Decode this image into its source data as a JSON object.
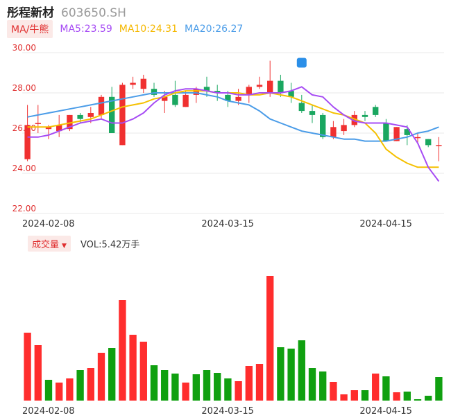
{
  "header": {
    "stock_name": "彤程新材",
    "stock_code": "603650.SH"
  },
  "legend": {
    "ma_toggle": "MA/牛熊",
    "ma5": "MA5:23.59",
    "ma10": "MA10:24.31",
    "ma20": "MA20:26.27"
  },
  "volume_header": {
    "toggle": "成交量",
    "caret": "▼",
    "vol_text": "VOL:5.42万手"
  },
  "colors": {
    "up": "#f03030",
    "down": "#1aa760",
    "vol_up": "#ff2d2d",
    "vol_down": "#10a010",
    "ma5": "#a64bf4",
    "ma10": "#f5c000",
    "ma20": "#4a9ce8",
    "grid": "#e8e8e8",
    "axis_label": "#e03030"
  },
  "chart_data": [
    {
      "type": "candlestick",
      "y_ticks": [
        "30.00",
        "28.00",
        "26.00",
        "24.00",
        "22.00"
      ],
      "ylim": [
        22,
        30
      ],
      "x_labels": [
        "2024-02-08",
        "2024-03-15",
        "2024-04-15"
      ],
      "x_label_index": [
        1,
        18,
        33
      ],
      "candles": [
        {
          "o": 24.7,
          "c": 26.4,
          "h": 27.4,
          "l": 24.6
        },
        {
          "o": 26.5,
          "c": 26.5,
          "h": 27.4,
          "l": 26.0
        },
        {
          "o": 26.2,
          "c": 26.3,
          "h": 26.4,
          "l": 25.7
        },
        {
          "o": 26.1,
          "c": 26.4,
          "h": 26.9,
          "l": 25.8
        },
        {
          "o": 26.2,
          "c": 26.9,
          "h": 26.9,
          "l": 26.1
        },
        {
          "o": 26.9,
          "c": 26.7,
          "h": 27.0,
          "l": 26.5
        },
        {
          "o": 26.8,
          "c": 27.0,
          "h": 27.3,
          "l": 26.5
        },
        {
          "o": 26.9,
          "c": 27.8,
          "h": 27.9,
          "l": 26.7
        },
        {
          "o": 27.8,
          "c": 26.0,
          "h": 28.3,
          "l": 26.0
        },
        {
          "o": 25.4,
          "c": 28.4,
          "h": 28.5,
          "l": 25.4
        },
        {
          "o": 28.4,
          "c": 28.5,
          "h": 28.8,
          "l": 28.2
        },
        {
          "o": 28.2,
          "c": 28.7,
          "h": 28.9,
          "l": 28.0
        },
        {
          "o": 28.2,
          "c": 27.9,
          "h": 28.5,
          "l": 27.8
        },
        {
          "o": 27.6,
          "c": 27.8,
          "h": 28.1,
          "l": 27.0
        },
        {
          "o": 27.9,
          "c": 27.4,
          "h": 28.6,
          "l": 27.3
        },
        {
          "o": 27.3,
          "c": 27.9,
          "h": 28.1,
          "l": 27.3
        },
        {
          "o": 27.9,
          "c": 28.2,
          "h": 28.3,
          "l": 27.5
        },
        {
          "o": 28.3,
          "c": 28.1,
          "h": 28.8,
          "l": 27.8
        },
        {
          "o": 28.1,
          "c": 28.0,
          "h": 28.4,
          "l": 27.6
        },
        {
          "o": 27.9,
          "c": 27.6,
          "h": 28.1,
          "l": 27.3
        },
        {
          "o": 27.6,
          "c": 27.8,
          "h": 28.2,
          "l": 27.4
        },
        {
          "o": 27.9,
          "c": 28.3,
          "h": 28.4,
          "l": 27.5
        },
        {
          "o": 28.3,
          "c": 28.4,
          "h": 28.8,
          "l": 28.2
        },
        {
          "o": 28.0,
          "c": 28.6,
          "h": 29.6,
          "l": 27.8
        },
        {
          "o": 28.6,
          "c": 28.0,
          "h": 28.9,
          "l": 27.8
        },
        {
          "o": 28.1,
          "c": 27.8,
          "h": 28.5,
          "l": 27.5
        },
        {
          "o": 27.5,
          "c": 27.1,
          "h": 27.9,
          "l": 27.0
        },
        {
          "o": 27.1,
          "c": 26.9,
          "h": 27.4,
          "l": 26.5
        },
        {
          "o": 26.9,
          "c": 25.8,
          "h": 27.0,
          "l": 25.7
        },
        {
          "o": 25.8,
          "c": 26.3,
          "h": 26.6,
          "l": 25.7
        },
        {
          "o": 26.1,
          "c": 26.4,
          "h": 26.7,
          "l": 25.9
        },
        {
          "o": 26.4,
          "c": 26.9,
          "h": 27.1,
          "l": 26.3
        },
        {
          "o": 26.9,
          "c": 26.8,
          "h": 27.1,
          "l": 26.6
        },
        {
          "o": 27.3,
          "c": 26.9,
          "h": 27.4,
          "l": 26.8
        },
        {
          "o": 26.5,
          "c": 25.6,
          "h": 26.7,
          "l": 25.6
        },
        {
          "o": 25.6,
          "c": 26.3,
          "h": 26.3,
          "l": 25.6
        },
        {
          "o": 26.2,
          "c": 25.9,
          "h": 26.4,
          "l": 25.4
        },
        {
          "o": 25.8,
          "c": 25.8,
          "h": 26.0,
          "l": 25.5
        },
        {
          "o": 25.7,
          "c": 25.4,
          "h": 25.7,
          "l": 25.3
        },
        {
          "o": 25.4,
          "c": 25.4,
          "h": 25.8,
          "l": 24.6
        }
      ],
      "ma5": [
        25.8,
        25.8,
        25.9,
        26.1,
        26.3,
        26.5,
        26.6,
        26.7,
        26.5,
        26.5,
        26.7,
        27.0,
        27.5,
        27.9,
        28.1,
        28.2,
        28.2,
        28.1,
        28.0,
        28.0,
        27.9,
        27.9,
        28.0,
        28.0,
        28.0,
        28.1,
        28.3,
        27.9,
        27.8,
        27.3,
        26.9,
        26.6,
        26.5,
        26.5,
        26.5,
        26.4,
        26.3,
        25.5,
        24.3,
        23.6
      ],
      "ma10": [
        26.3,
        26.3,
        26.3,
        26.4,
        26.5,
        26.6,
        26.7,
        26.9,
        27.1,
        27.3,
        27.4,
        27.5,
        27.7,
        27.8,
        28.0,
        28.1,
        28.1,
        28.1,
        28.0,
        28.0,
        28.0,
        27.9,
        27.9,
        28.0,
        27.9,
        27.8,
        27.6,
        27.4,
        27.2,
        27.0,
        26.9,
        26.7,
        26.5,
        26.0,
        25.2,
        24.8,
        24.5,
        24.3,
        24.3,
        24.3
      ],
      "ma20": [
        26.8,
        26.9,
        27.0,
        27.1,
        27.2,
        27.3,
        27.4,
        27.5,
        27.6,
        27.7,
        27.8,
        27.9,
        28.0,
        28.0,
        28.0,
        28.0,
        28.0,
        27.9,
        27.8,
        27.6,
        27.5,
        27.4,
        27.1,
        26.7,
        26.5,
        26.3,
        26.1,
        26.0,
        25.9,
        25.8,
        25.7,
        25.7,
        25.6,
        25.6,
        25.6,
        25.7,
        25.8,
        26.0,
        26.1,
        26.3
      ]
    },
    {
      "type": "bar",
      "title": "成交量",
      "values": [
        0.98,
        0.8,
        0.3,
        0.26,
        0.32,
        0.44,
        0.47,
        0.69,
        0.76,
        1.45,
        0.95,
        0.85,
        0.51,
        0.44,
        0.39,
        0.26,
        0.38,
        0.44,
        0.4,
        0.32,
        0.28,
        0.5,
        0.53,
        1.8,
        0.77,
        0.75,
        0.87,
        0.47,
        0.42,
        0.27,
        0.09,
        0.15,
        0.15,
        0.39,
        0.35,
        0.12,
        0.13,
        0.02,
        0.07,
        0.34
      ],
      "up": [
        true,
        true,
        false,
        true,
        true,
        false,
        true,
        true,
        false,
        true,
        true,
        true,
        false,
        false,
        false,
        true,
        false,
        false,
        false,
        false,
        true,
        true,
        true,
        true,
        false,
        false,
        false,
        false,
        false,
        true,
        true,
        true,
        false,
        true,
        false,
        true,
        false,
        false,
        false,
        false
      ],
      "ylim": [
        0,
        1.8
      ]
    }
  ]
}
